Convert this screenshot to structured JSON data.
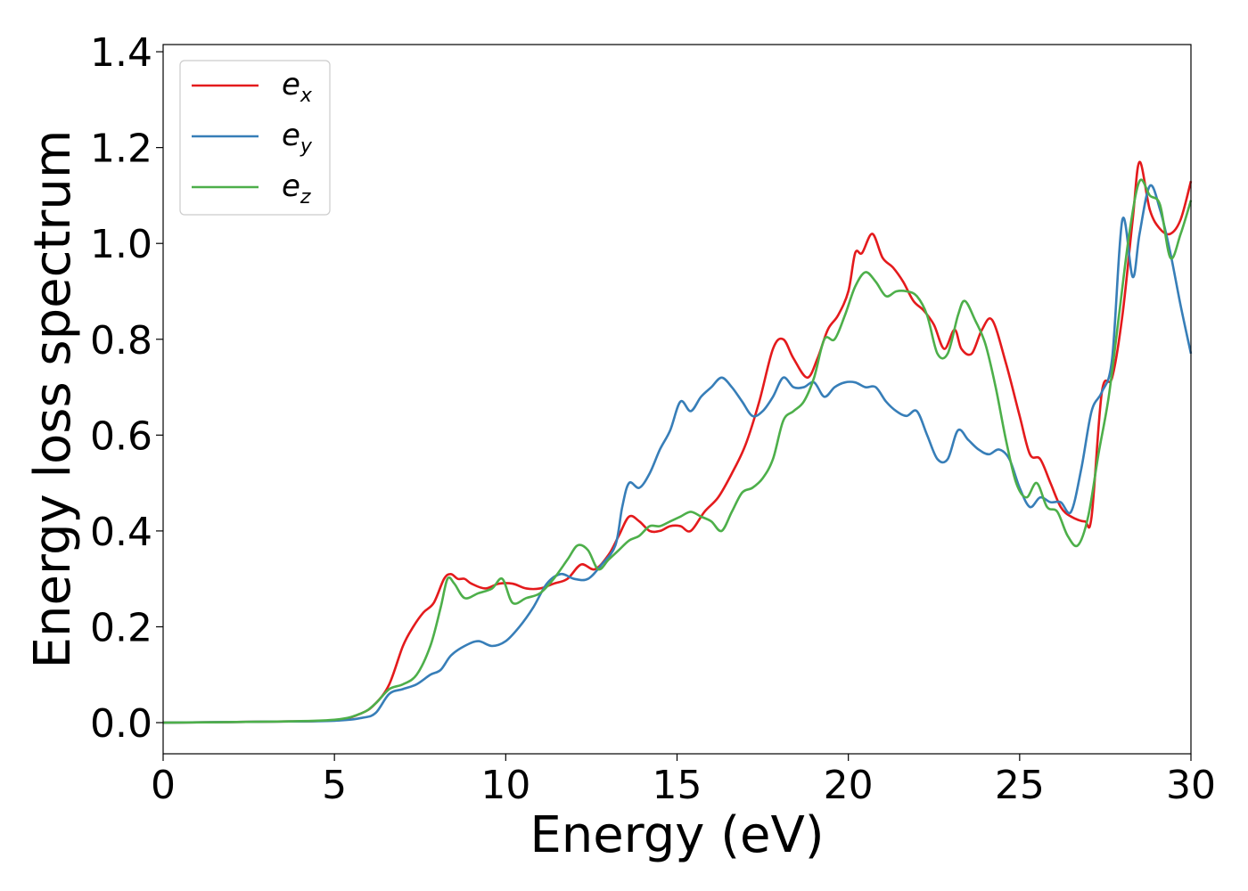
{
  "chart_data": {
    "type": "line",
    "xlabel": "Energy (eV)",
    "ylabel": "Energy loss spectrum",
    "xlim": [
      0,
      30
    ],
    "ylim": [
      -0.065,
      1.415
    ],
    "xticks": [
      0,
      5,
      10,
      15,
      20,
      25,
      30
    ],
    "xtick_labels": [
      "0",
      "5",
      "10",
      "15",
      "20",
      "25",
      "30"
    ],
    "yticks": [
      0.0,
      0.2,
      0.4,
      0.6,
      0.8,
      1.0,
      1.2,
      1.4
    ],
    "ytick_labels": [
      "0.0",
      "0.2",
      "0.4",
      "0.6",
      "0.8",
      "1.0",
      "1.2",
      "1.4"
    ],
    "grid": false,
    "legend_position": "top-left",
    "series": [
      {
        "name": "e_x",
        "label_base": "e",
        "label_sub": "x",
        "color": "#e41a1c",
        "x": [
          0,
          3,
          5,
          5.8,
          6.2,
          6.6,
          7.0,
          7.3,
          7.6,
          7.9,
          8.2,
          8.4,
          8.6,
          8.8,
          9.0,
          9.4,
          9.8,
          10.2,
          10.6,
          11.0,
          11.4,
          11.8,
          12.2,
          12.6,
          13.0,
          13.3,
          13.6,
          13.9,
          14.2,
          14.5,
          14.8,
          15.1,
          15.4,
          15.8,
          16.2,
          16.6,
          17.0,
          17.4,
          17.8,
          18.1,
          18.4,
          18.8,
          19.1,
          19.4,
          19.7,
          20.0,
          20.2,
          20.4,
          20.7,
          21.0,
          21.3,
          21.6,
          21.9,
          22.2,
          22.5,
          22.8,
          23.1,
          23.3,
          23.6,
          23.9,
          24.2,
          24.6,
          25.0,
          25.3,
          25.6,
          25.9,
          26.2,
          26.5,
          26.9,
          27.1,
          27.4,
          27.7,
          28.0,
          28.3,
          28.5,
          28.8,
          29.1,
          29.4,
          29.7,
          30.0
        ],
        "y": [
          0.0,
          0.002,
          0.005,
          0.02,
          0.04,
          0.08,
          0.16,
          0.2,
          0.23,
          0.25,
          0.3,
          0.31,
          0.3,
          0.3,
          0.29,
          0.28,
          0.29,
          0.29,
          0.28,
          0.28,
          0.29,
          0.3,
          0.33,
          0.32,
          0.35,
          0.39,
          0.43,
          0.42,
          0.4,
          0.4,
          0.41,
          0.41,
          0.4,
          0.44,
          0.47,
          0.52,
          0.58,
          0.67,
          0.78,
          0.8,
          0.76,
          0.72,
          0.76,
          0.82,
          0.85,
          0.9,
          0.98,
          0.98,
          1.02,
          0.97,
          0.95,
          0.92,
          0.88,
          0.86,
          0.83,
          0.78,
          0.82,
          0.78,
          0.77,
          0.82,
          0.84,
          0.75,
          0.64,
          0.56,
          0.55,
          0.5,
          0.45,
          0.43,
          0.42,
          0.43,
          0.69,
          0.72,
          0.85,
          1.05,
          1.17,
          1.07,
          1.03,
          1.02,
          1.05,
          1.13
        ]
      },
      {
        "name": "e_y",
        "label_base": "e",
        "label_sub": "y",
        "color": "#377eb8",
        "x": [
          0,
          3,
          5,
          5.8,
          6.2,
          6.6,
          7.0,
          7.4,
          7.8,
          8.1,
          8.4,
          8.8,
          9.2,
          9.6,
          10.0,
          10.4,
          10.8,
          11.2,
          11.6,
          12.0,
          12.4,
          12.8,
          13.2,
          13.4,
          13.6,
          13.9,
          14.2,
          14.5,
          14.8,
          15.1,
          15.4,
          15.7,
          16.0,
          16.3,
          16.6,
          16.9,
          17.2,
          17.5,
          17.8,
          18.1,
          18.4,
          18.7,
          19.0,
          19.3,
          19.6,
          19.9,
          20.2,
          20.5,
          20.8,
          21.1,
          21.4,
          21.7,
          22.0,
          22.3,
          22.6,
          22.9,
          23.2,
          23.5,
          23.8,
          24.1,
          24.4,
          24.7,
          25.0,
          25.3,
          25.6,
          25.9,
          26.2,
          26.5,
          26.8,
          27.1,
          27.4,
          27.7,
          28.0,
          28.3,
          28.5,
          28.8,
          29.1,
          29.4,
          29.7,
          30.0
        ],
        "y": [
          0.0,
          0.002,
          0.004,
          0.01,
          0.02,
          0.06,
          0.07,
          0.08,
          0.1,
          0.11,
          0.14,
          0.16,
          0.17,
          0.16,
          0.17,
          0.2,
          0.24,
          0.29,
          0.31,
          0.3,
          0.3,
          0.33,
          0.37,
          0.45,
          0.5,
          0.49,
          0.52,
          0.57,
          0.61,
          0.67,
          0.65,
          0.68,
          0.7,
          0.72,
          0.7,
          0.67,
          0.64,
          0.65,
          0.68,
          0.72,
          0.7,
          0.7,
          0.71,
          0.68,
          0.7,
          0.71,
          0.71,
          0.7,
          0.7,
          0.67,
          0.65,
          0.64,
          0.65,
          0.6,
          0.55,
          0.55,
          0.61,
          0.59,
          0.57,
          0.56,
          0.57,
          0.55,
          0.49,
          0.45,
          0.47,
          0.46,
          0.46,
          0.44,
          0.53,
          0.65,
          0.69,
          0.76,
          1.05,
          0.93,
          1.02,
          1.12,
          1.07,
          0.98,
          0.87,
          0.77
        ]
      },
      {
        "name": "e_z",
        "label_base": "e",
        "label_sub": "z",
        "color": "#4daf4a",
        "x": [
          0,
          3,
          5,
          5.8,
          6.2,
          6.6,
          7.0,
          7.4,
          7.8,
          8.1,
          8.3,
          8.5,
          8.8,
          9.2,
          9.6,
          9.9,
          10.2,
          10.6,
          11.0,
          11.4,
          11.8,
          12.1,
          12.4,
          12.7,
          13.0,
          13.3,
          13.6,
          13.9,
          14.2,
          14.5,
          14.8,
          15.1,
          15.4,
          15.7,
          16.0,
          16.3,
          16.6,
          16.9,
          17.2,
          17.5,
          17.8,
          18.1,
          18.4,
          18.7,
          19.0,
          19.3,
          19.6,
          19.9,
          20.2,
          20.5,
          20.8,
          21.1,
          21.4,
          21.7,
          22.0,
          22.3,
          22.6,
          22.9,
          23.2,
          23.4,
          23.7,
          24.0,
          24.3,
          24.6,
          24.9,
          25.2,
          25.5,
          25.8,
          26.1,
          26.4,
          26.7,
          27.0,
          27.3,
          27.6,
          27.9,
          28.2,
          28.5,
          28.8,
          29.1,
          29.4,
          29.7,
          30.0
        ],
        "y": [
          0.0,
          0.002,
          0.006,
          0.02,
          0.04,
          0.07,
          0.08,
          0.1,
          0.16,
          0.24,
          0.3,
          0.29,
          0.26,
          0.27,
          0.28,
          0.3,
          0.25,
          0.26,
          0.27,
          0.3,
          0.34,
          0.37,
          0.36,
          0.32,
          0.34,
          0.36,
          0.38,
          0.39,
          0.41,
          0.41,
          0.42,
          0.43,
          0.44,
          0.43,
          0.42,
          0.4,
          0.44,
          0.48,
          0.49,
          0.51,
          0.55,
          0.63,
          0.65,
          0.67,
          0.72,
          0.8,
          0.8,
          0.85,
          0.91,
          0.94,
          0.92,
          0.89,
          0.9,
          0.9,
          0.89,
          0.85,
          0.77,
          0.77,
          0.85,
          0.88,
          0.84,
          0.79,
          0.7,
          0.59,
          0.5,
          0.47,
          0.5,
          0.45,
          0.44,
          0.39,
          0.37,
          0.43,
          0.56,
          0.68,
          0.85,
          1.02,
          1.13,
          1.1,
          1.08,
          0.97,
          1.02,
          1.09
        ]
      }
    ]
  }
}
